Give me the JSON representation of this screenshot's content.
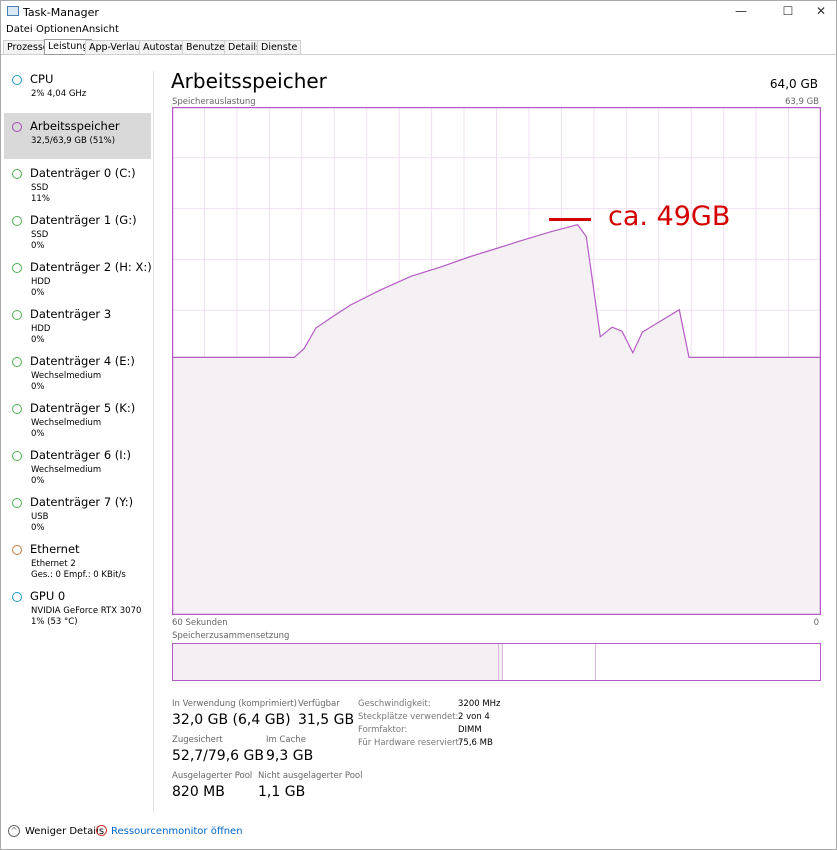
{
  "window": {
    "title": "Task-Manager",
    "controls": [
      "—",
      "☐",
      "✕"
    ]
  },
  "menu": [
    "Datei",
    "Optionen",
    "Ansicht"
  ],
  "tabs": [
    "Prozesse",
    "Leistung",
    "App-Verlauf",
    "Autostart",
    "Benutzer",
    "Details",
    "Dienste"
  ],
  "active_tab": "Leistung",
  "sidebar": [
    {
      "name": "CPU",
      "sub1": "2% 4,04 GHz",
      "sub2": "",
      "color": "#1e9bc8"
    },
    {
      "name": "Arbeitsspeicher",
      "sub1": "32,5/63,9 GB (51%)",
      "sub2": "",
      "color": "#a24bb3",
      "selected": true
    },
    {
      "name": "Datenträger 0 (C:)",
      "sub1": "SSD",
      "sub2": "11%",
      "color": "#4caf50"
    },
    {
      "name": "Datenträger 1 (G:)",
      "sub1": "SSD",
      "sub2": "0%",
      "color": "#4caf50"
    },
    {
      "name": "Datenträger 2 (H: X:)",
      "sub1": "HDD",
      "sub2": "0%",
      "color": "#4caf50"
    },
    {
      "name": "Datenträger 3",
      "sub1": "HDD",
      "sub2": "0%",
      "color": "#4caf50"
    },
    {
      "name": "Datenträger 4 (E:)",
      "sub1": "Wechselmedium",
      "sub2": "0%",
      "color": "#4caf50"
    },
    {
      "name": "Datenträger 5 (K:)",
      "sub1": "Wechselmedium",
      "sub2": "0%",
      "color": "#4caf50"
    },
    {
      "name": "Datenträger 6 (I:)",
      "sub1": "Wechselmedium",
      "sub2": "0%",
      "color": "#4caf50"
    },
    {
      "name": "Datenträger 7 (Y:)",
      "sub1": "USB",
      "sub2": "0%",
      "color": "#4caf50"
    },
    {
      "name": "Ethernet",
      "sub1": "Ethernet 2",
      "sub2": "Ges.: 0 Empf.: 0 KBit/s",
      "color": "#c87a3c"
    },
    {
      "name": "GPU 0",
      "sub1": "NVIDIA GeForce RTX 3070",
      "sub2": "1% (53 °C)",
      "color": "#1e9bc8"
    }
  ],
  "main": {
    "title": "Arbeitsspeicher",
    "total": "64,0 GB",
    "graph_label": "Speicherauslastung",
    "graph_max": "63,9 GB",
    "x_left": "60 Sekunden",
    "x_right": "0",
    "composition_label": "Speicherzusammensetzung",
    "annotation": "ca. 49GB",
    "composition": {
      "in_use_pct": 50.3,
      "modified_pct": 0.5,
      "standby_pct": 14.4
    }
  },
  "chart_data": {
    "type": "area",
    "xlabel": "",
    "ylabel": "",
    "x_unit": "seconds ago",
    "xlim": [
      60,
      0
    ],
    "ylim": [
      0,
      63.9
    ],
    "grid": true,
    "color": "#b65bc6",
    "x": [
      60,
      48.7,
      47.8,
      46.7,
      45.3,
      43.5,
      40.7,
      37.9,
      35.1,
      32.4,
      30.0,
      27.7,
      25.0,
      22.5,
      21.7,
      20.4,
      19.3,
      18.4,
      17.4,
      16.5,
      14.8,
      13.1,
      12.2,
      0
    ],
    "y": [
      32.4,
      32.4,
      33.5,
      36.1,
      37.4,
      39.0,
      40.9,
      42.6,
      43.8,
      45.1,
      46.1,
      47.1,
      48.2,
      49.1,
      47.6,
      35.0,
      36.2,
      35.7,
      33.0,
      35.6,
      37.0,
      38.4,
      32.4,
      32.4
    ]
  },
  "stats": [
    {
      "label": "In Verwendung (komprimiert)",
      "value": "32,0 GB (6,4 GB)"
    },
    {
      "label": "Verfügbar",
      "value": "31,5 GB"
    },
    {
      "label": "Zugesichert",
      "value": "52,7/79,6 GB"
    },
    {
      "label": "Im Cache",
      "value": "9,3 GB"
    },
    {
      "label": "Ausgelagerter Pool",
      "value": "820 MB"
    },
    {
      "label": "Nicht ausgelagerter Pool",
      "value": "1,1 GB"
    }
  ],
  "details": [
    {
      "k": "Geschwindigkeit:",
      "v": "3200 MHz"
    },
    {
      "k": "Steckplätze verwendet:",
      "v": "2 von 4"
    },
    {
      "k": "Formfaktor:",
      "v": "DIMM"
    },
    {
      "k": "Für Hardware reserviert:",
      "v": "75,6 MB"
    }
  ],
  "footer": {
    "less": "Weniger Details",
    "resmon": "Ressourcenmonitor öffnen"
  }
}
